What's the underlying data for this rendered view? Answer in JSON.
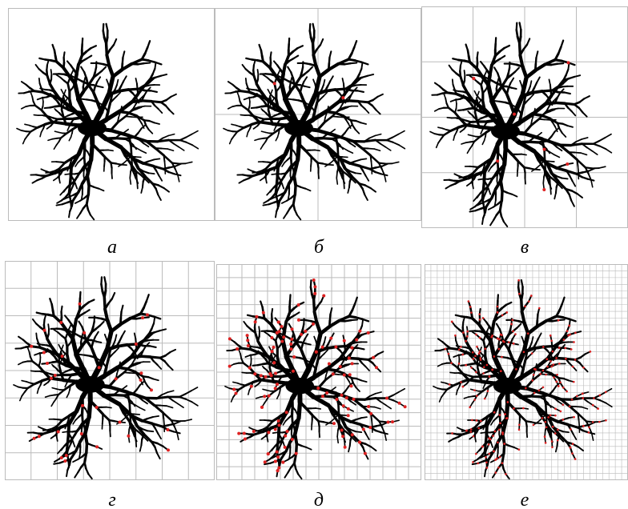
{
  "figure": {
    "panels": [
      {
        "label": "а"
      },
      {
        "label": "б"
      },
      {
        "label": "в"
      },
      {
        "label": "г"
      },
      {
        "label": "д"
      },
      {
        "label": "е"
      }
    ]
  }
}
